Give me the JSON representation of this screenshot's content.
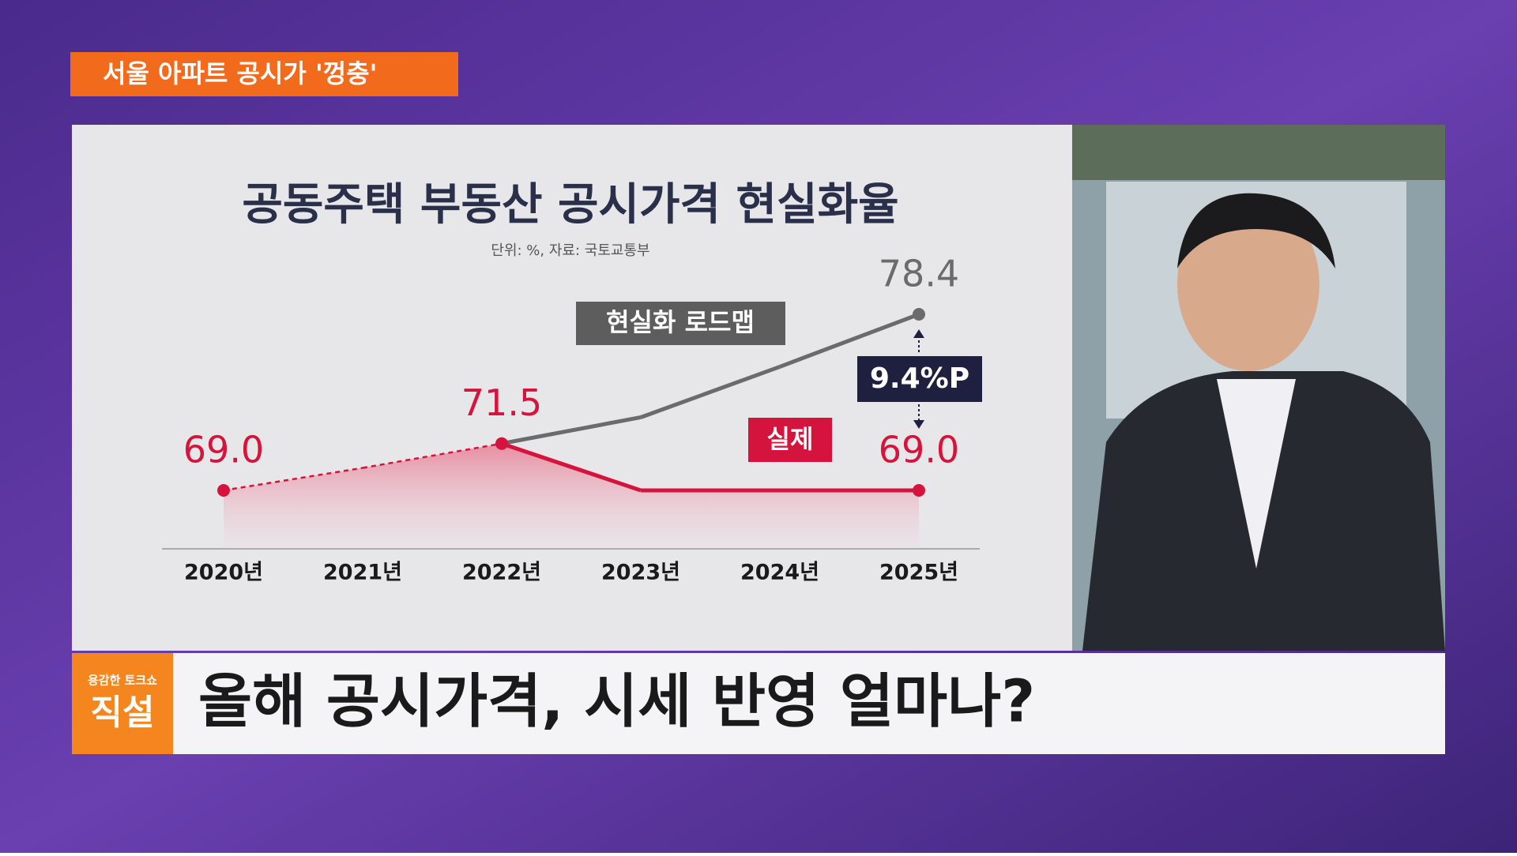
{
  "banner": "서울 아파트 공시가 '껑충'",
  "logo": {
    "top": "용감한 토크쇼",
    "main": "직설"
  },
  "caption": "올해 공시가격, 시세 반영 얼마나?",
  "chart_data": {
    "type": "line",
    "title": "공동주택 부동산 공시가격 현실화율",
    "subtitle": "단위: %, 자료: 국토교통부",
    "categories": [
      "2020년",
      "2021년",
      "2022년",
      "2023년",
      "2024년",
      "2025년"
    ],
    "series": [
      {
        "name": "현실화 로드맵",
        "color": "#6b6b6b",
        "values": [
          null,
          null,
          71.5,
          72.9,
          75.6,
          78.4
        ]
      },
      {
        "name": "실제",
        "color": "#d4143c",
        "values": [
          69.0,
          70.2,
          71.5,
          69.0,
          69.0,
          69.0
        ],
        "value_labels": [
          "69.0",
          null,
          "71.5",
          null,
          null,
          "69.0"
        ]
      }
    ],
    "annotation": "9.4%P"
  }
}
